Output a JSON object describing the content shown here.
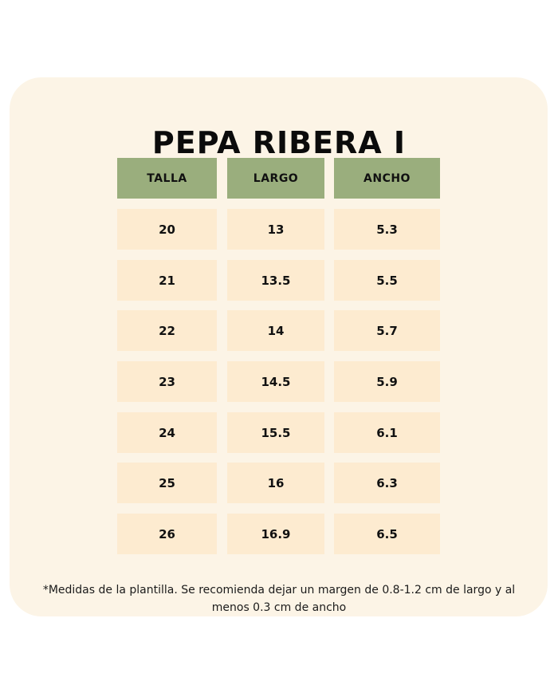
{
  "title": "PEPA RIBERA I",
  "table": {
    "headers": [
      "TALLA",
      "LARGO",
      "ANCHO"
    ],
    "rows": [
      [
        "20",
        "13",
        "5.3"
      ],
      [
        "21",
        "13.5",
        "5.5"
      ],
      [
        "22",
        "14",
        "5.7"
      ],
      [
        "23",
        "14.5",
        "5.9"
      ],
      [
        "24",
        "15.5",
        "6.1"
      ],
      [
        "25",
        "16",
        "6.3"
      ],
      [
        "26",
        "16.9",
        "6.5"
      ]
    ]
  },
  "note": "*Medidas de la plantilla. Se recomienda dejar un margen de 0.8-1.2 cm de largo y al menos 0.3 cm de ancho",
  "colors": {
    "card_background": "#fcf4e6",
    "header_background": "#9aae7d",
    "cell_background": "#fdebd0",
    "text": "#111111"
  }
}
